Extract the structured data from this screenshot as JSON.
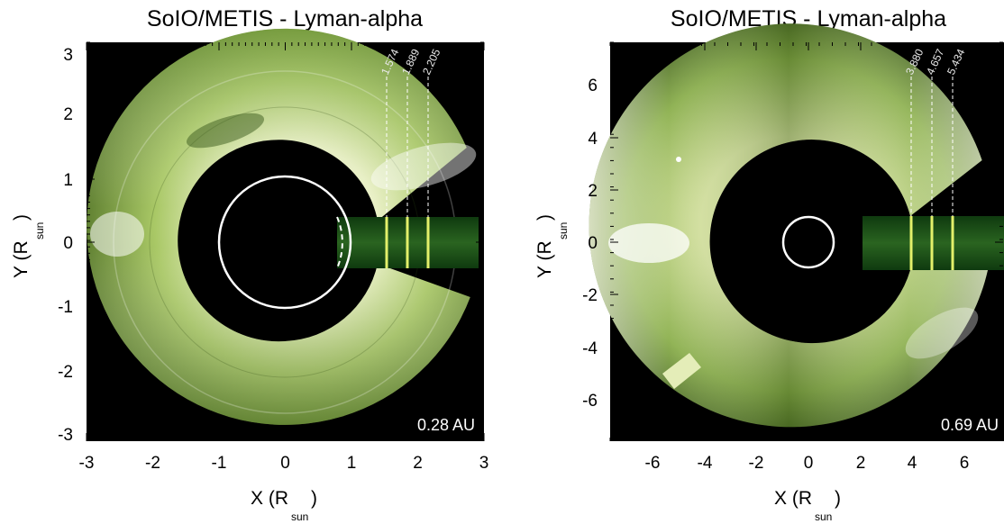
{
  "panels": [
    {
      "id": "left",
      "title": "SoIO/METIS - Lyman-alpha",
      "xlabel_main": "X (R",
      "xlabel_sub": "sun",
      "xlabel_close": ")",
      "ylabel_main": "Y (R",
      "ylabel_sub": "sun",
      "ylabel_close": ")",
      "distance_label": "0.28 AU",
      "xticks": [
        "-3",
        "-2",
        "-1",
        "0",
        "1",
        "2",
        "3"
      ],
      "yticks": [
        "3",
        "2",
        "1",
        "0",
        "-1",
        "-2",
        "-3"
      ],
      "radial_labels": [
        "1.574",
        "1.889",
        "2.205"
      ]
    },
    {
      "id": "right",
      "title": "SoIO/METIS - Lyman-alpha",
      "xlabel_main": "X (R",
      "xlabel_sub": "sun",
      "xlabel_close": ")",
      "ylabel_main": "Y (R",
      "ylabel_sub": "sun",
      "ylabel_close": ")",
      "distance_label": "0.69 AU",
      "xticks": [
        "-6",
        "-4",
        "-2",
        "0",
        "2",
        "4",
        "6"
      ],
      "yticks": [
        "6",
        "4",
        "2",
        "0",
        "-2",
        "-4",
        "-6"
      ],
      "radial_labels": [
        "3.880",
        "4.657",
        "5.434"
      ]
    }
  ],
  "colors": {
    "corona_light": "#f3f6d8",
    "corona_mid": "#9ebf55",
    "corona_dark": "#3f5e1e",
    "occulter": "#000000",
    "strip": "#1c4d16",
    "strip_line": "#e3f06a",
    "limb_circle": "#ffffff"
  }
}
